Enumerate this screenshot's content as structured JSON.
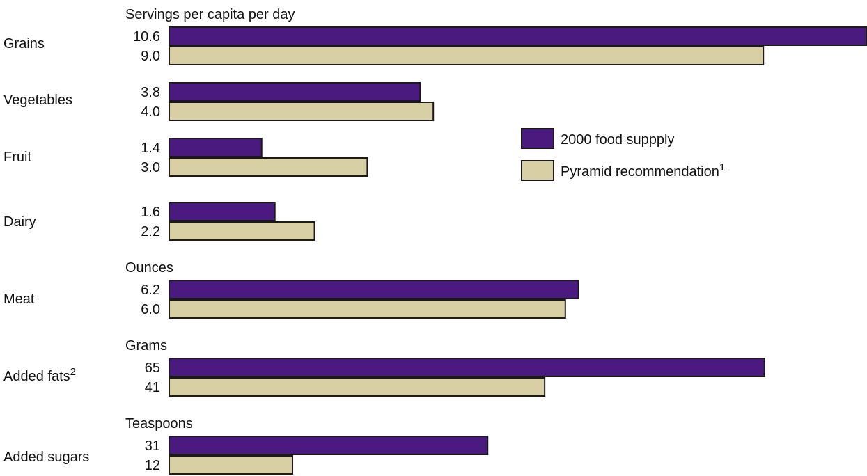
{
  "chart_data": {
    "type": "bar",
    "orientation": "horizontal",
    "categories": [
      "Grains",
      "Vegetables",
      "Fruit",
      "Dairy",
      "Meat",
      "Added fats",
      "Added sugars"
    ],
    "category_superscripts": [
      "",
      "",
      "",
      "",
      "",
      "2",
      ""
    ],
    "group_unit_labels": [
      "Servings per capita per day",
      "",
      "",
      "",
      "Ounces",
      "Grams",
      "Teaspoons"
    ],
    "series": [
      {
        "name": "2000 food suppply",
        "values": [
          10.6,
          3.8,
          1.4,
          1.6,
          6.2,
          65,
          31
        ]
      },
      {
        "name": "Pyramid recommendation",
        "name_superscript": "1",
        "values": [
          9.0,
          4.0,
          3.0,
          2.2,
          6.0,
          41,
          12
        ]
      }
    ],
    "value_labels": [
      [
        "10.6",
        "3.8",
        "1.4",
        "1.6",
        "6.2",
        "65",
        "31"
      ],
      [
        "9.0",
        "4.0",
        "3.0",
        "2.2",
        "6.0",
        "41",
        "12"
      ]
    ],
    "colors": [
      "#4b1a7e",
      "#d9cfa5"
    ],
    "legend_position": "right",
    "grid": false
  }
}
